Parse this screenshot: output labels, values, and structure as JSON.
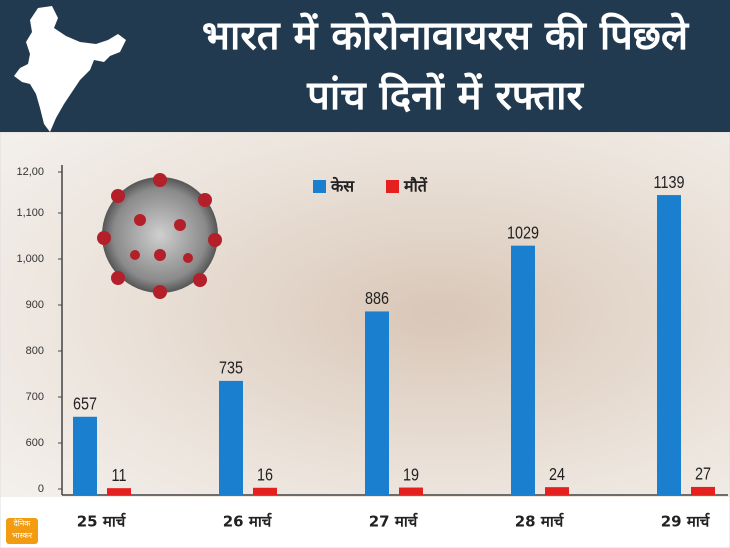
{
  "header": {
    "title": "भारत में कोरोनावायरस की पिछले पांच दिनों में रफ्तार"
  },
  "logo": "दैनिक भास्कर",
  "chart_data": {
    "type": "bar",
    "categories": [
      "25 मार्च",
      "26 मार्च",
      "27 मार्च",
      "28 मार्च",
      "29 मार्च"
    ],
    "series": [
      {
        "name": "केस",
        "color": "#1a7fcf",
        "values": [
          657,
          735,
          886,
          1029,
          1139
        ]
      },
      {
        "name": "मौतें",
        "color": "#e5211f",
        "values": [
          11,
          16,
          19,
          24,
          27
        ]
      }
    ],
    "ylim": [
      0,
      1200
    ],
    "yticks": [
      0,
      600,
      700,
      800,
      900,
      {
        "value": 1000,
        "label": "1,000"
      },
      {
        "value": 1100,
        "label": "1,100"
      },
      {
        "value": 1200,
        "label": "12,00"
      }
    ],
    "grid": false
  }
}
